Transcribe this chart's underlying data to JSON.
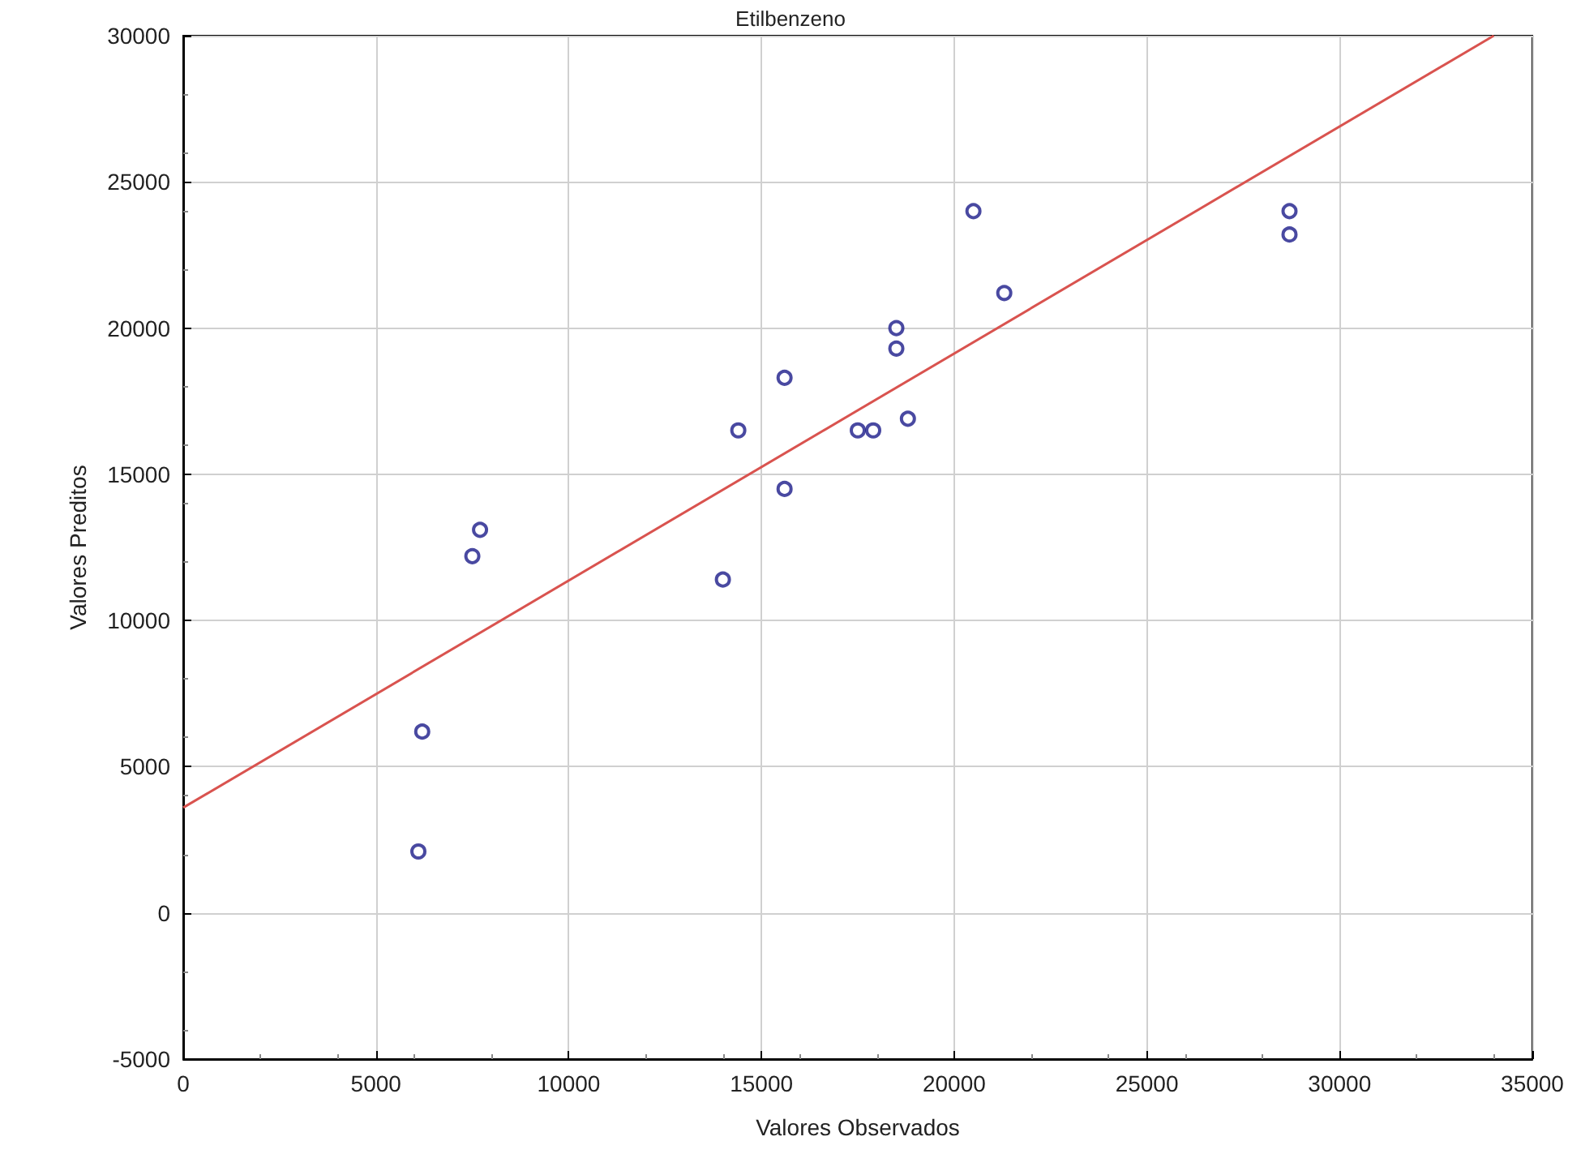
{
  "chart_data": {
    "type": "scatter",
    "title": "Etilbenzeno",
    "xlabel": "Valores Observados",
    "ylabel": "Valores Preditos",
    "x": [
      6100,
      6200,
      7500,
      7700,
      14000,
      14400,
      15600,
      15600,
      17500,
      17900,
      18500,
      18500,
      18800,
      20500,
      21300,
      28700,
      28700
    ],
    "series": [
      {
        "color": "#1c1c8a",
        "marker": "circle",
        "values": [
          2100,
          6200,
          12200,
          13100,
          11400,
          16500,
          18300,
          14500,
          16500,
          16500,
          20000,
          19300,
          16900,
          24000,
          21200,
          24000,
          23200
        ]
      },
      {
        "type": "line",
        "color": "#d9534f",
        "marker": "none",
        "line_style": "solid",
        "x": [
          0,
          34000
        ],
        "values": [
          3600,
          30000
        ]
      }
    ],
    "xlim": [
      0,
      35000
    ],
    "xticks": [
      0,
      5000,
      10000,
      15000,
      20000,
      25000,
      30000,
      35000
    ],
    "ylim": [
      -5000,
      30000
    ],
    "yticks": [
      -5000,
      0,
      5000,
      10000,
      15000,
      20000,
      25000,
      30000
    ],
    "grid": true
  }
}
